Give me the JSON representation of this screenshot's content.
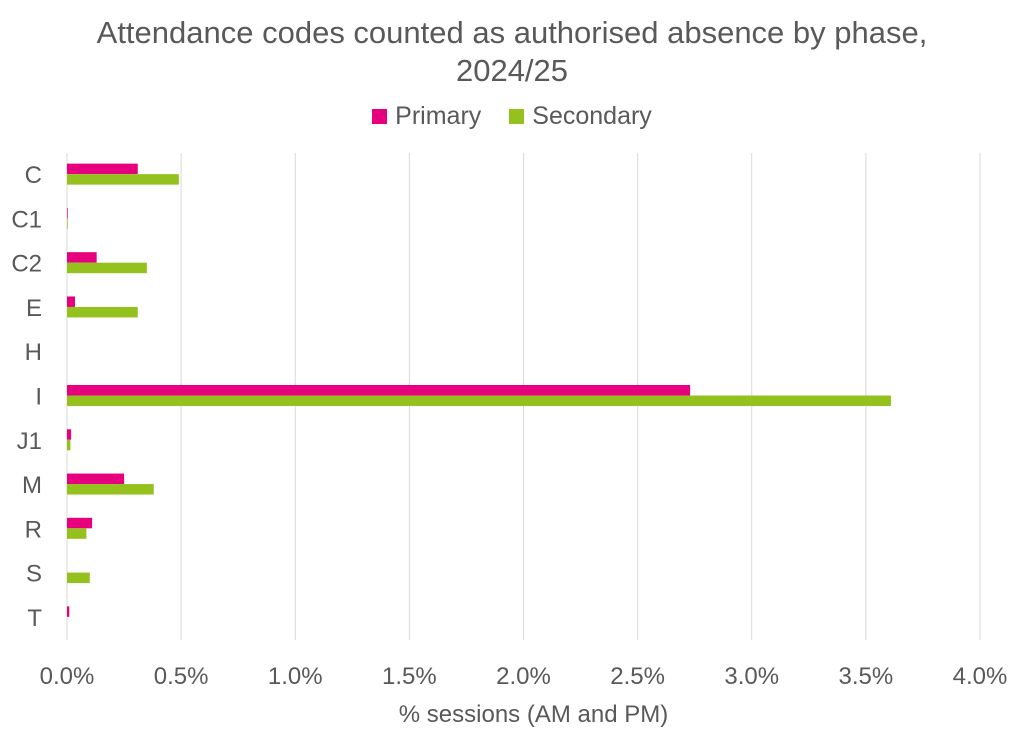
{
  "chart_data": {
    "type": "bar",
    "orientation": "horizontal",
    "title": "Attendance codes counted as authorised absence by phase, 2024/25",
    "xlabel": "% sessions (AM and PM)",
    "ylabel": "",
    "categories": [
      "C",
      "C1",
      "C2",
      "E",
      "H",
      "I",
      "J1",
      "M",
      "R",
      "S",
      "T"
    ],
    "series": [
      {
        "name": "Primary",
        "color": "#e6007e",
        "values": [
          0.31,
          0.003,
          0.13,
          0.035,
          0.0,
          2.73,
          0.018,
          0.25,
          0.11,
          0.0,
          0.01
        ]
      },
      {
        "name": "Secondary",
        "color": "#95c11f",
        "values": [
          0.49,
          0.003,
          0.35,
          0.31,
          0.0,
          3.61,
          0.015,
          0.38,
          0.085,
          0.1,
          0.0
        ]
      }
    ],
    "xlim": [
      0,
      4.0
    ],
    "xticks": [
      "0.0%",
      "0.5%",
      "1.0%",
      "1.5%",
      "2.0%",
      "2.5%",
      "3.0%",
      "3.5%",
      "4.0%"
    ],
    "grid": true,
    "legend": "top"
  }
}
